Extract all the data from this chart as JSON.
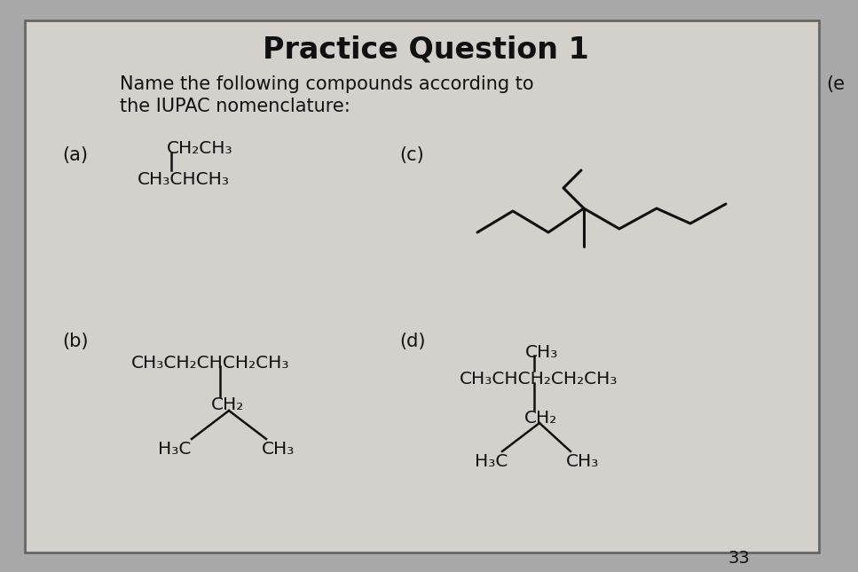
{
  "title": "Practice Question 1",
  "instruction_line1": "Name the following compounds according to",
  "instruction_line2": "the IUPAC nomenclature:",
  "outer_bg": "#a8a8a8",
  "page_bg": "#d4d0cc",
  "border_color": "#666666",
  "text_color": "#111111",
  "page_number": "33",
  "label_a": "(a)",
  "label_b": "(b)",
  "label_c": "(c)",
  "label_d": "(d)",
  "label_e": "(e",
  "title_fontsize": 24,
  "body_fontsize": 15,
  "chem_fontsize": 14.5
}
